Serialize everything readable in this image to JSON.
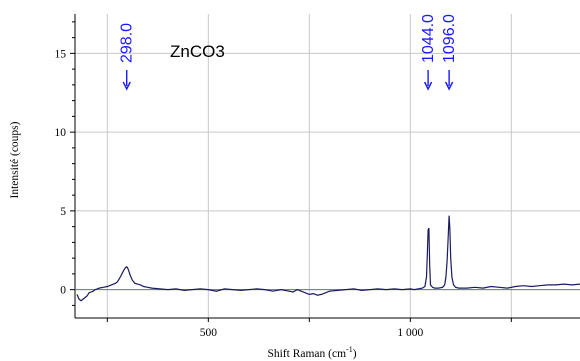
{
  "chart_data": {
    "type": "line",
    "title": "ZnCO3",
    "xlabel": "Shift Raman (cm",
    "xlabel_sup": "-1",
    "xlabel_suffix": ")",
    "ylabel": "Intensité (coups)",
    "xlim": [
      170,
      1420
    ],
    "ylim": [
      -1.8,
      17.5
    ],
    "x_ticks": [
      {
        "value": 500,
        "label": "500"
      },
      {
        "value": 1000,
        "label": "1 000"
      }
    ],
    "x_gridlines": [
      250,
      500,
      750,
      1000,
      1250
    ],
    "y_ticks": [
      {
        "value": 0,
        "label": "0"
      },
      {
        "value": 5,
        "label": "5"
      },
      {
        "value": 10,
        "label": "10"
      },
      {
        "value": 15,
        "label": "15"
      }
    ],
    "grid": true,
    "colors": {
      "spectrum": "#1a1a5e",
      "baseline": "#6b8e23",
      "peak_annotation": "#1a1aff",
      "grid": "#c8c8c8",
      "axis": "#000000"
    },
    "peaks": [
      {
        "x": 298.0,
        "label": "298.0"
      },
      {
        "x": 1044.0,
        "label": "1044.0"
      },
      {
        "x": 1096.0,
        "label": "1096.0"
      }
    ],
    "series": [
      {
        "x": [
          175,
          180,
          185,
          190,
          195,
          200,
          205,
          210,
          215,
          220,
          225,
          230,
          240,
          250,
          260,
          270,
          275,
          280,
          285,
          290,
          295,
          298,
          300,
          303,
          307,
          312,
          318,
          325,
          332,
          340,
          350,
          360,
          380,
          400,
          420,
          440,
          460,
          480,
          500,
          520,
          540,
          560,
          580,
          600,
          620,
          640,
          660,
          680,
          700,
          710,
          720,
          730,
          740,
          750,
          760,
          770,
          780,
          790,
          800,
          820,
          840,
          860,
          880,
          900,
          920,
          940,
          960,
          980,
          1000,
          1010,
          1020,
          1030,
          1036,
          1040,
          1042,
          1044,
          1046,
          1048,
          1050,
          1055,
          1060,
          1070,
          1080,
          1085,
          1088,
          1091,
          1094,
          1096,
          1098,
          1100,
          1103,
          1107,
          1112,
          1120,
          1140,
          1160,
          1180,
          1200,
          1220,
          1240,
          1260,
          1280,
          1300,
          1320,
          1340,
          1360,
          1380,
          1400,
          1420
        ],
        "y": [
          -0.3,
          -0.6,
          -0.7,
          -0.6,
          -0.5,
          -0.4,
          -0.2,
          -0.15,
          -0.1,
          0.0,
          0.05,
          0.1,
          0.15,
          0.2,
          0.3,
          0.4,
          0.5,
          0.7,
          0.95,
          1.2,
          1.4,
          1.45,
          1.4,
          1.2,
          0.9,
          0.6,
          0.4,
          0.35,
          0.3,
          0.2,
          0.15,
          0.1,
          0.05,
          0.0,
          0.05,
          -0.05,
          0.0,
          0.05,
          0.0,
          -0.1,
          0.05,
          0.0,
          -0.05,
          0.0,
          0.05,
          0.0,
          -0.1,
          0.0,
          -0.1,
          -0.15,
          0.0,
          -0.1,
          -0.2,
          -0.3,
          -0.25,
          -0.35,
          -0.3,
          -0.2,
          -0.1,
          -0.05,
          0.0,
          0.05,
          -0.05,
          0.0,
          0.05,
          0.0,
          0.05,
          0.0,
          0.05,
          0.0,
          0.05,
          0.1,
          0.2,
          0.8,
          2.2,
          3.8,
          3.9,
          1.5,
          0.3,
          0.15,
          0.1,
          0.1,
          0.15,
          0.3,
          0.8,
          1.8,
          3.5,
          4.7,
          3.8,
          2.0,
          0.8,
          0.3,
          0.15,
          0.1,
          0.1,
          0.15,
          0.1,
          0.2,
          0.15,
          0.1,
          0.2,
          0.25,
          0.2,
          0.25,
          0.3,
          0.3,
          0.35,
          0.3,
          0.35
        ]
      }
    ]
  }
}
